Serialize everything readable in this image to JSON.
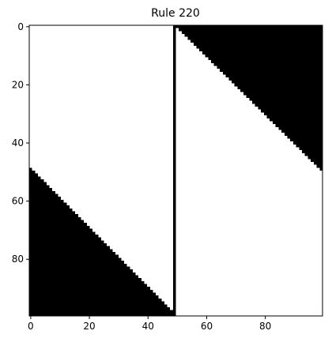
{
  "chart_data": {
    "type": "heatmap",
    "title": "Rule 220",
    "xlabel": "",
    "ylabel": "",
    "colormap": [
      "#ffffff",
      "#000000"
    ],
    "grid": false,
    "xlim": [
      -0.5,
      99.5
    ],
    "ylim": [
      99.5,
      -0.5
    ],
    "xticks": [
      0,
      20,
      40,
      60,
      80
    ],
    "yticks": [
      0,
      20,
      40,
      60,
      80
    ],
    "x_tick_labels": [
      "0",
      "20",
      "40",
      "60",
      "80"
    ],
    "y_tick_labels": [
      "0",
      "20",
      "40",
      "60",
      "80"
    ],
    "grid_rows": 100,
    "grid_cols": 100,
    "black_regions": [
      {
        "name": "lower-left triangle",
        "rows": [
          49,
          99
        ],
        "cols_from": 0,
        "col_end_at_row_start": 0,
        "col_end_at_row_end": 49
      },
      {
        "name": "center column",
        "rows": [
          0,
          99
        ],
        "cols": [
          49,
          49
        ]
      },
      {
        "name": "right wedge",
        "rows": [
          0,
          99
        ],
        "col_start_at_row_start": 50,
        "col_start_at_row_end": 149,
        "cols_to": 99
      }
    ]
  }
}
